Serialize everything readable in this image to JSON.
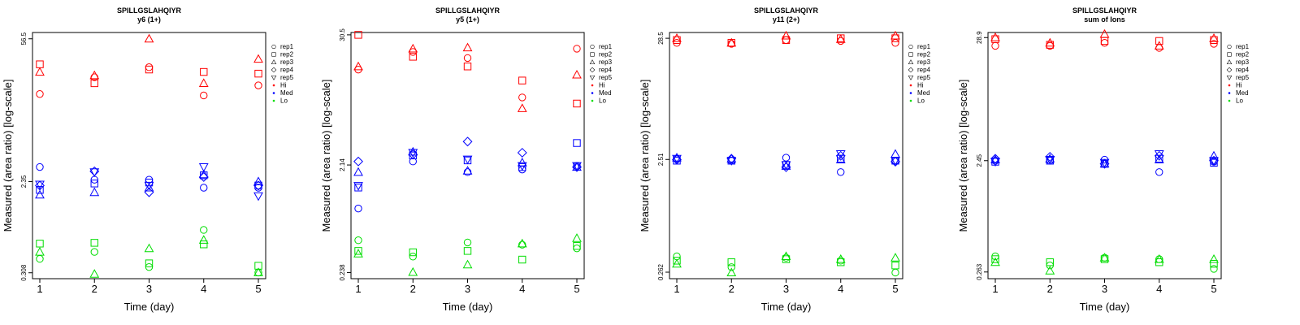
{
  "chart_data": [
    {
      "type": "scatter",
      "title": "SPILLGSLAHQIYR",
      "subtitle": "y6 (1+)",
      "xlabel": "Time (day)",
      "ylabel": "Measured (area ratio) [log-scale]",
      "x_ticks": [
        "1",
        "2",
        "3",
        "4",
        "5"
      ],
      "y_ticks": [
        {
          "value": 0.308,
          "label": "0.308"
        },
        {
          "value": 2.35,
          "label": "2.35"
        },
        {
          "value": 56.5,
          "label": "56.5"
        }
      ],
      "ylim": [
        0.27,
        65
      ],
      "y_scale": "log",
      "legend": {
        "placement": "right",
        "entries": [
          {
            "label": "rep1",
            "kind": "marker",
            "shape": "circle"
          },
          {
            "label": "rep2",
            "kind": "marker",
            "shape": "square"
          },
          {
            "label": "rep3",
            "kind": "marker",
            "shape": "triangle"
          },
          {
            "label": "rep4",
            "kind": "marker",
            "shape": "diamond"
          },
          {
            "label": "rep5",
            "kind": "marker",
            "shape": "invtriangle"
          },
          {
            "label": "Hi",
            "kind": "color",
            "color": "#ff0000"
          },
          {
            "label": "Med",
            "kind": "color",
            "color": "#0000ff"
          },
          {
            "label": "Lo",
            "kind": "color",
            "color": "#00dd00"
          }
        ]
      },
      "series": [
        {
          "group": "Hi",
          "rep": "rep1",
          "x": [
            1,
            2,
            3,
            4,
            5
          ],
          "y": [
            16.5,
            24,
            30,
            16,
            20
          ]
        },
        {
          "group": "Hi",
          "rep": "rep2",
          "x": [
            1,
            2,
            3,
            4,
            5
          ],
          "y": [
            32,
            21,
            28.5,
            27,
            26
          ]
        },
        {
          "group": "Hi",
          "rep": "rep3",
          "x": [
            1,
            2,
            3,
            4,
            5
          ],
          "y": [
            27,
            25,
            56.5,
            21,
            36
          ]
        },
        {
          "group": "Med",
          "rep": "rep1",
          "x": [
            1,
            2,
            3,
            4,
            5
          ],
          "y": [
            3.25,
            2.45,
            2.45,
            2.05,
            2.05
          ]
        },
        {
          "group": "Med",
          "rep": "rep2",
          "x": [
            1,
            2,
            3,
            4,
            5
          ],
          "y": [
            1.95,
            2.25,
            2.3,
            2.7,
            2.15
          ]
        },
        {
          "group": "Med",
          "rep": "rep3",
          "x": [
            1,
            2,
            3,
            4,
            5
          ],
          "y": [
            1.75,
            1.85,
            2.05,
            2.75,
            2.35
          ]
        },
        {
          "group": "Med",
          "rep": "rep4",
          "x": [
            1,
            2,
            3,
            4,
            5
          ],
          "y": [
            2.15,
            2.95,
            1.85,
            2.6,
            2.15
          ]
        },
        {
          "group": "Med",
          "rep": "rep5",
          "x": [
            1,
            2,
            3,
            4,
            5
          ],
          "y": [
            2.2,
            2.9,
            2.15,
            3.25,
            1.7
          ]
        },
        {
          "group": "Lo",
          "rep": "rep1",
          "x": [
            1,
            2,
            3,
            4,
            5
          ],
          "y": [
            0.42,
            0.49,
            0.35,
            0.8,
            0.31
          ]
        },
        {
          "group": "Lo",
          "rep": "rep2",
          "x": [
            1,
            2,
            3,
            4,
            5
          ],
          "y": [
            0.59,
            0.6,
            0.38,
            0.58,
            0.36
          ]
        },
        {
          "group": "Lo",
          "rep": "rep3",
          "x": [
            1,
            2,
            3,
            4,
            5
          ],
          "y": [
            0.49,
            0.3,
            0.53,
            0.64,
            0.31
          ]
        }
      ]
    },
    {
      "type": "scatter",
      "title": "SPILLGSLAHQIYR",
      "subtitle": "y5 (1+)",
      "xlabel": "Time (day)",
      "ylabel": "Measured (area ratio) [log-scale]",
      "x_ticks": [
        "1",
        "2",
        "3",
        "4",
        "5"
      ],
      "y_ticks": [
        {
          "value": 0.238,
          "label": "0.238"
        },
        {
          "value": 2.14,
          "label": "2.14"
        },
        {
          "value": 30.5,
          "label": "30.5"
        }
      ],
      "ylim": [
        0.21,
        32
      ],
      "y_scale": "log",
      "legend": {
        "placement": "right",
        "entries": [
          {
            "label": "rep1",
            "kind": "marker",
            "shape": "circle"
          },
          {
            "label": "rep2",
            "kind": "marker",
            "shape": "square"
          },
          {
            "label": "rep3",
            "kind": "marker",
            "shape": "triangle"
          },
          {
            "label": "rep4",
            "kind": "marker",
            "shape": "diamond"
          },
          {
            "label": "rep5",
            "kind": "marker",
            "shape": "invtriangle"
          },
          {
            "label": "Hi",
            "kind": "color",
            "color": "#ff0000"
          },
          {
            "label": "Med",
            "kind": "color",
            "color": "#0000ff"
          },
          {
            "label": "Lo",
            "kind": "color",
            "color": "#00dd00"
          }
        ]
      },
      "series": [
        {
          "group": "Hi",
          "rep": "rep1",
          "x": [
            1,
            2,
            3,
            4,
            5
          ],
          "y": [
            15,
            21.5,
            19,
            8.5,
            23
          ]
        },
        {
          "group": "Hi",
          "rep": "rep2",
          "x": [
            1,
            2,
            3,
            4,
            5
          ],
          "y": [
            30.5,
            19.5,
            16,
            12,
            7.5
          ]
        },
        {
          "group": "Hi",
          "rep": "rep3",
          "x": [
            1,
            2,
            3,
            4,
            5
          ],
          "y": [
            16,
            23,
            23.5,
            6.8,
            13.5
          ]
        },
        {
          "group": "Med",
          "rep": "rep1",
          "x": [
            1,
            2,
            3,
            4,
            5
          ],
          "y": [
            0.88,
            2.3,
            1.85,
            1.95,
            2.1
          ]
        },
        {
          "group": "Med",
          "rep": "rep2",
          "x": [
            1,
            2,
            3,
            4,
            5
          ],
          "y": [
            1.35,
            2.6,
            2.35,
            2.05,
            3.35
          ]
        },
        {
          "group": "Med",
          "rep": "rep3",
          "x": [
            1,
            2,
            3,
            4,
            5
          ],
          "y": [
            1.85,
            2.8,
            1.9,
            2.25,
            2.05
          ]
        },
        {
          "group": "Med",
          "rep": "rep4",
          "x": [
            1,
            2,
            3,
            4,
            5
          ],
          "y": [
            2.3,
            2.65,
            3.45,
            2.75,
            2.05
          ]
        },
        {
          "group": "Med",
          "rep": "rep5",
          "x": [
            1,
            2,
            3,
            4,
            5
          ],
          "y": [
            1.4,
            2.75,
            2.4,
            2.1,
            2.1
          ]
        },
        {
          "group": "Lo",
          "rep": "rep1",
          "x": [
            1,
            2,
            3,
            4,
            5
          ],
          "y": [
            0.46,
            0.33,
            0.44,
            0.42,
            0.39
          ]
        },
        {
          "group": "Lo",
          "rep": "rep2",
          "x": [
            1,
            2,
            3,
            4,
            5
          ],
          "y": [
            0.37,
            0.36,
            0.37,
            0.31,
            0.41
          ]
        },
        {
          "group": "Lo",
          "rep": "rep3",
          "x": [
            1,
            2,
            3,
            4,
            5
          ],
          "y": [
            0.35,
            0.24,
            0.28,
            0.43,
            0.48
          ]
        }
      ]
    },
    {
      "type": "scatter",
      "title": "SPILLGSLAHQIYR",
      "subtitle": "y11 (2+)",
      "xlabel": "Time (day)",
      "ylabel": "Measured (area ratio) [log-scale]",
      "x_ticks": [
        "1",
        "2",
        "3",
        "4",
        "5"
      ],
      "y_ticks": [
        {
          "value": 0.262,
          "label": "0.262"
        },
        {
          "value": 2.51,
          "label": "2.51"
        },
        {
          "value": 28.5,
          "label": "28.5"
        }
      ],
      "ylim": [
        0.23,
        32
      ],
      "y_scale": "log",
      "legend": {
        "placement": "right",
        "entries": [
          {
            "label": "rep1",
            "kind": "marker",
            "shape": "circle"
          },
          {
            "label": "rep2",
            "kind": "marker",
            "shape": "square"
          },
          {
            "label": "rep3",
            "kind": "marker",
            "shape": "triangle"
          },
          {
            "label": "rep4",
            "kind": "marker",
            "shape": "diamond"
          },
          {
            "label": "rep5",
            "kind": "marker",
            "shape": "invtriangle"
          },
          {
            "label": "Hi",
            "kind": "color",
            "color": "#ff0000"
          },
          {
            "label": "Med",
            "kind": "color",
            "color": "#0000ff"
          },
          {
            "label": "Lo",
            "kind": "color",
            "color": "#00dd00"
          }
        ]
      },
      "series": [
        {
          "group": "Hi",
          "rep": "rep1",
          "x": [
            1,
            2,
            3,
            4,
            5
          ],
          "y": [
            26,
            25.5,
            27.5,
            27,
            26
          ]
        },
        {
          "group": "Hi",
          "rep": "rep2",
          "x": [
            1,
            2,
            3,
            4,
            5
          ],
          "y": [
            27.5,
            26,
            27.5,
            28.5,
            28.5
          ]
        },
        {
          "group": "Hi",
          "rep": "rep3",
          "x": [
            1,
            2,
            3,
            4,
            5
          ],
          "y": [
            28.5,
            26,
            30,
            28,
            30
          ]
        },
        {
          "group": "Med",
          "rep": "rep1",
          "x": [
            1,
            2,
            3,
            4,
            5
          ],
          "y": [
            2.55,
            2.45,
            2.6,
            1.95,
            2.45
          ]
        },
        {
          "group": "Med",
          "rep": "rep2",
          "x": [
            1,
            2,
            3,
            4,
            5
          ],
          "y": [
            2.45,
            2.45,
            2.25,
            2.55,
            2.45
          ]
        },
        {
          "group": "Med",
          "rep": "rep3",
          "x": [
            1,
            2,
            3,
            4,
            5
          ],
          "y": [
            2.6,
            2.55,
            2.2,
            2.5,
            2.8
          ]
        },
        {
          "group": "Med",
          "rep": "rep4",
          "x": [
            1,
            2,
            3,
            4,
            5
          ],
          "y": [
            2.5,
            2.55,
            2.15,
            2.7,
            2.4
          ]
        },
        {
          "group": "Med",
          "rep": "rep5",
          "x": [
            1,
            2,
            3,
            4,
            5
          ],
          "y": [
            2.55,
            2.45,
            2.25,
            2.8,
            2.45
          ]
        },
        {
          "group": "Lo",
          "rep": "rep1",
          "x": [
            1,
            2,
            3,
            4,
            5
          ],
          "y": [
            0.36,
            0.29,
            0.35,
            0.33,
            0.26
          ]
        },
        {
          "group": "Lo",
          "rep": "rep2",
          "x": [
            1,
            2,
            3,
            4,
            5
          ],
          "y": [
            0.33,
            0.32,
            0.34,
            0.32,
            0.3
          ]
        },
        {
          "group": "Lo",
          "rep": "rep3",
          "x": [
            1,
            2,
            3,
            4,
            5
          ],
          "y": [
            0.31,
            0.26,
            0.36,
            0.34,
            0.35
          ]
        }
      ]
    },
    {
      "type": "scatter",
      "title": "SPILLGSLAHQIYR",
      "subtitle": "sum of Ions",
      "xlabel": "Time (day)",
      "ylabel": "Measured (area ratio) [log-scale]",
      "x_ticks": [
        "1",
        "2",
        "3",
        "4",
        "5"
      ],
      "y_ticks": [
        {
          "value": 0.263,
          "label": "0.263"
        },
        {
          "value": 2.45,
          "label": "2.45"
        },
        {
          "value": 28.9,
          "label": "28.9"
        }
      ],
      "ylim": [
        0.23,
        32
      ],
      "y_scale": "log",
      "legend": {
        "placement": "right",
        "entries": [
          {
            "label": "rep1",
            "kind": "marker",
            "shape": "circle"
          },
          {
            "label": "rep2",
            "kind": "marker",
            "shape": "square"
          },
          {
            "label": "rep3",
            "kind": "marker",
            "shape": "triangle"
          },
          {
            "label": "rep4",
            "kind": "marker",
            "shape": "diamond"
          },
          {
            "label": "rep5",
            "kind": "marker",
            "shape": "invtriangle"
          },
          {
            "label": "Hi",
            "kind": "color",
            "color": "#ff0000"
          },
          {
            "label": "Med",
            "kind": "color",
            "color": "#0000ff"
          },
          {
            "label": "Lo",
            "kind": "color",
            "color": "#00dd00"
          }
        ]
      },
      "series": [
        {
          "group": "Hi",
          "rep": "rep1",
          "x": [
            1,
            2,
            3,
            4,
            5
          ],
          "y": [
            24.5,
            24.5,
            26,
            23.5,
            25.5
          ]
        },
        {
          "group": "Hi",
          "rep": "rep2",
          "x": [
            1,
            2,
            3,
            4,
            5
          ],
          "y": [
            28,
            25,
            27,
            27,
            27.5
          ]
        },
        {
          "group": "Hi",
          "rep": "rep3",
          "x": [
            1,
            2,
            3,
            4,
            5
          ],
          "y": [
            29,
            26,
            31,
            24.5,
            28.5
          ]
        },
        {
          "group": "Med",
          "rep": "rep1",
          "x": [
            1,
            2,
            3,
            4,
            5
          ],
          "y": [
            2.45,
            2.45,
            2.5,
            1.95,
            2.4
          ]
        },
        {
          "group": "Med",
          "rep": "rep2",
          "x": [
            1,
            2,
            3,
            4,
            5
          ],
          "y": [
            2.4,
            2.45,
            2.3,
            2.55,
            2.35
          ]
        },
        {
          "group": "Med",
          "rep": "rep3",
          "x": [
            1,
            2,
            3,
            4,
            5
          ],
          "y": [
            2.5,
            2.55,
            2.3,
            2.5,
            2.7
          ]
        },
        {
          "group": "Med",
          "rep": "rep4",
          "x": [
            1,
            2,
            3,
            4,
            5
          ],
          "y": [
            2.55,
            2.65,
            2.3,
            2.7,
            2.45
          ]
        },
        {
          "group": "Med",
          "rep": "rep5",
          "x": [
            1,
            2,
            3,
            4,
            5
          ],
          "y": [
            2.4,
            2.5,
            2.35,
            2.8,
            2.45
          ]
        },
        {
          "group": "Lo",
          "rep": "rep1",
          "x": [
            1,
            2,
            3,
            4,
            5
          ],
          "y": [
            0.36,
            0.3,
            0.35,
            0.34,
            0.28
          ]
        },
        {
          "group": "Lo",
          "rep": "rep2",
          "x": [
            1,
            2,
            3,
            4,
            5
          ],
          "y": [
            0.34,
            0.32,
            0.34,
            0.32,
            0.31
          ]
        },
        {
          "group": "Lo",
          "rep": "rep3",
          "x": [
            1,
            2,
            3,
            4,
            5
          ],
          "y": [
            0.32,
            0.27,
            0.35,
            0.34,
            0.34
          ]
        }
      ]
    }
  ],
  "colors": {
    "Hi": "#ff0000",
    "Med": "#0000ff",
    "Lo": "#00dd00"
  }
}
